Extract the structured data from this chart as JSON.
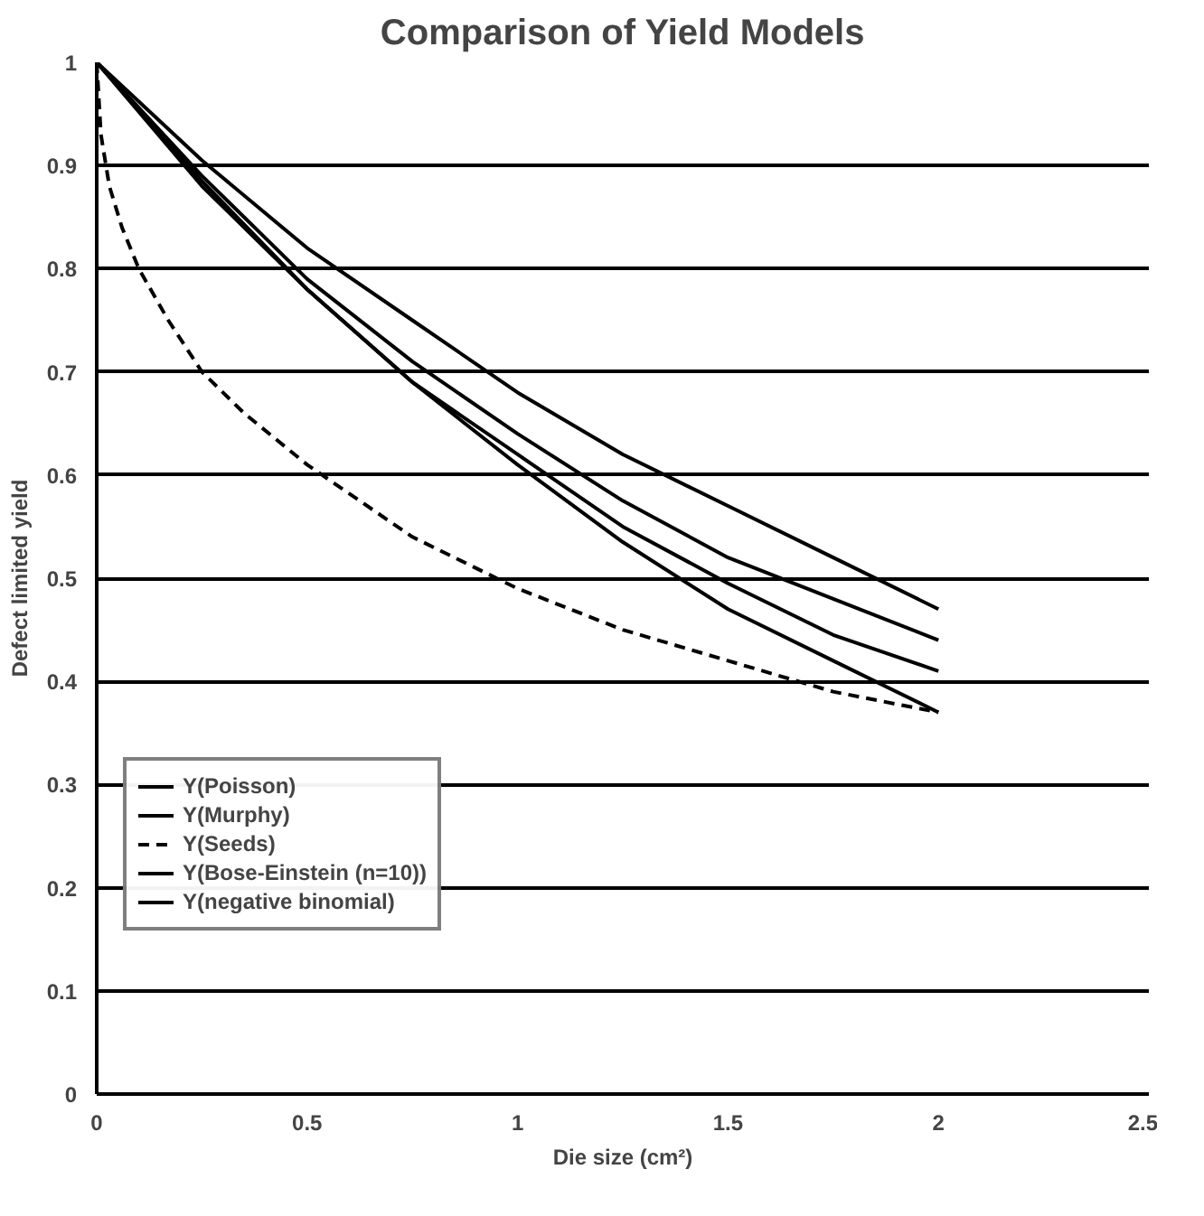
{
  "chart_data": {
    "type": "line",
    "title": "Comparison of Yield Models",
    "xlabel": "Die size (cm²)",
    "ylabel": "Defect limited yield",
    "x": [
      0,
      0.25,
      0.5,
      0.75,
      1,
      1.25,
      1.5,
      1.75,
      2
    ],
    "xlim": [
      0,
      2.5
    ],
    "xticks": [
      0,
      0.5,
      1,
      1.5,
      2,
      2.5
    ],
    "ylim": [
      0,
      1
    ],
    "yticks": [
      0,
      0.1,
      0.2,
      0.3,
      0.4,
      0.5,
      0.6,
      0.7,
      0.8,
      0.9,
      1
    ],
    "grid": "y",
    "legend": "bottom left",
    "marker": "none",
    "line_style": "solid",
    "series": [
      {
        "name": "Y(Poisson)",
        "color": "#000000",
        "values": [
          1,
          0.88,
          0.78,
          0.69,
          0.61,
          0.535,
          0.47,
          0.42,
          0.37
        ]
      },
      {
        "name": "Y(Murphy)",
        "color": "#000000",
        "values": [
          1,
          0.885,
          0.78,
          0.69,
          0.62,
          0.55,
          0.495,
          0.445,
          0.41
        ]
      },
      {
        "name": "Y(Seeds)",
        "color": "#000000",
        "line_style": "dashed",
        "x": [
          0,
          0.01,
          0.03,
          0.06,
          0.1,
          0.17,
          0.25,
          0.35,
          0.5,
          0.75,
          1,
          1.25,
          1.5,
          1.75,
          2
        ],
        "values": [
          1,
          0.93,
          0.88,
          0.84,
          0.8,
          0.75,
          0.7,
          0.66,
          0.61,
          0.54,
          0.49,
          0.45,
          0.42,
          0.39,
          0.37
        ]
      },
      {
        "name": "Y(Bose-Einstein (n=10))",
        "color": "#000000",
        "values": [
          1,
          0.89,
          0.79,
          0.71,
          0.64,
          0.575,
          0.52,
          0.48,
          0.44
        ]
      },
      {
        "name": "Y(negative binomial)",
        "color": "#000000",
        "values": [
          1,
          0.905,
          0.82,
          0.75,
          0.68,
          0.62,
          0.57,
          0.52,
          0.47
        ]
      }
    ]
  }
}
